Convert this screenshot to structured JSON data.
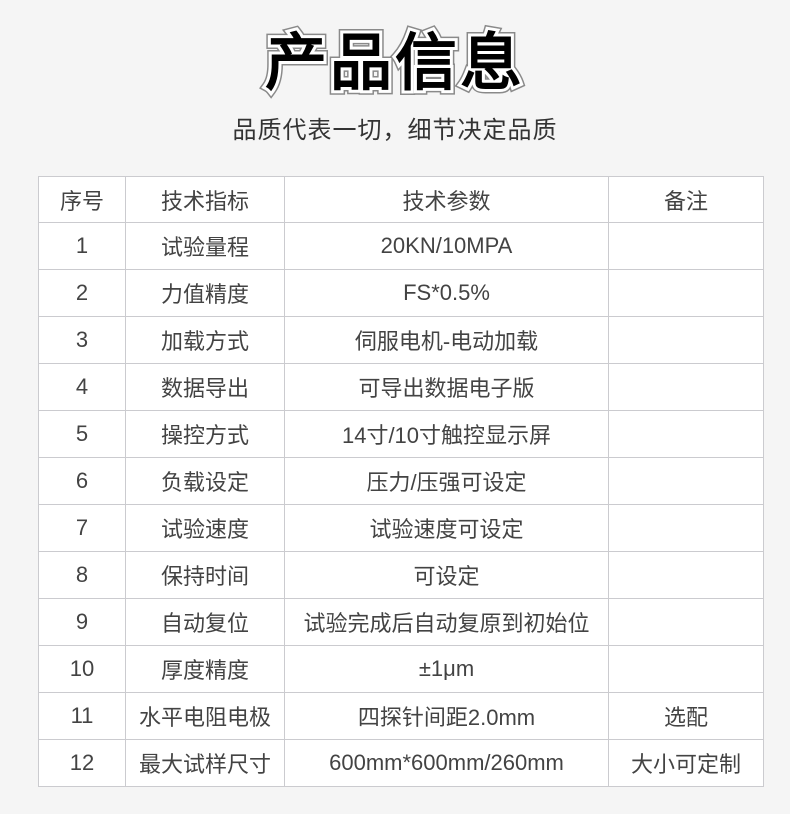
{
  "header": {
    "title": "产品信息",
    "subtitle": "品质代表一切，细节决定品质"
  },
  "table": {
    "columns": [
      "序号",
      "技术指标",
      "技术参数",
      "备注"
    ],
    "rows": [
      {
        "no": "1",
        "indicator": "试验量程",
        "parameter": "20KN/10MPA",
        "remark": ""
      },
      {
        "no": "2",
        "indicator": "力值精度",
        "parameter": "FS*0.5%",
        "remark": ""
      },
      {
        "no": "3",
        "indicator": "加载方式",
        "parameter": "伺服电机-电动加载",
        "remark": ""
      },
      {
        "no": "4",
        "indicator": "数据导出",
        "parameter": "可导出数据电子版",
        "remark": ""
      },
      {
        "no": "5",
        "indicator": "操控方式",
        "parameter": "14寸/10寸触控显示屏",
        "remark": ""
      },
      {
        "no": "6",
        "indicator": "负载设定",
        "parameter": "压力/压强可设定",
        "remark": ""
      },
      {
        "no": "7",
        "indicator": "试验速度",
        "parameter": "试验速度可设定",
        "remark": ""
      },
      {
        "no": "8",
        "indicator": "保持时间",
        "parameter": "可设定",
        "remark": ""
      },
      {
        "no": "9",
        "indicator": "自动复位",
        "parameter": "试验完成后自动复原到初始位",
        "remark": ""
      },
      {
        "no": "10",
        "indicator": "厚度精度",
        "parameter": "±1μm",
        "remark": ""
      },
      {
        "no": "11",
        "indicator": "水平电阻电极",
        "parameter": "四探针间距2.0mm",
        "remark": "选配"
      },
      {
        "no": "12",
        "indicator": "最大试样尺寸",
        "parameter": "600mm*600mm/260mm",
        "remark": "大小可定制"
      }
    ]
  },
  "colors": {
    "page_background": "#f5f5f5",
    "cell_background": "#ffffff",
    "border": "#cbcbcf",
    "text": "#434343",
    "title_fill": "#000000",
    "title_inner_outline": "#ffffff",
    "title_outer_outline": "#8a8a8a"
  }
}
